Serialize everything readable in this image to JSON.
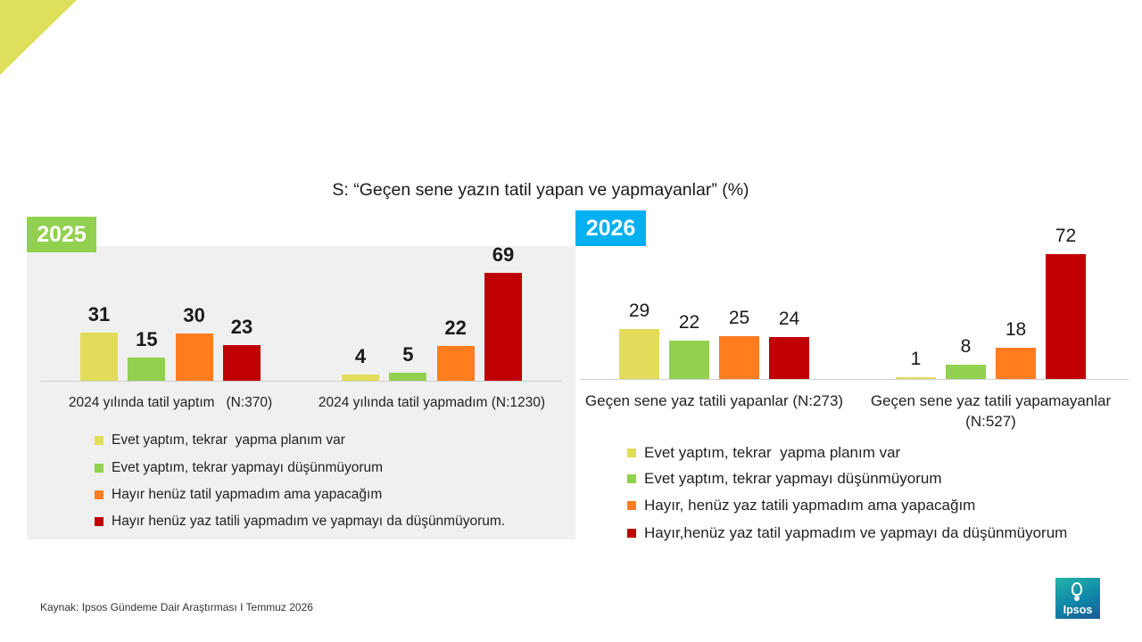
{
  "title": "S: “Geçen sene yazın tatil yapan ve yapmayanlar” (%)",
  "colors": {
    "accent": "#DEE05B",
    "panel": "#F0F0F0",
    "axis": "#CFCFCF"
  },
  "chart_data": [
    {
      "type": "bar",
      "title": "2025",
      "title_color": "#92D050",
      "categories": [
        "2024 yılında tatil yaptım   (N:370)",
        "2024 yılında tatil yapmadım (N:1230)"
      ],
      "series": [
        {
          "name": "Evet yaptım, tekrar  yapma planım var",
          "color": "#E3DC5A",
          "values": [
            31,
            4
          ]
        },
        {
          "name": "Evet yaptım, tekrar yapmayı düşünmüyorum",
          "color": "#92D050",
          "values": [
            15,
            5
          ]
        },
        {
          "name": "Hayır henüz tatil yapmadım ama yapacağım",
          "color": "#FF7C1F",
          "values": [
            30,
            22
          ]
        },
        {
          "name": "Hayır henüz yaz tatili yapmadım ve yapmayı da düşünmüyorum.",
          "color": "#C00000",
          "values": [
            23,
            69
          ]
        }
      ],
      "grid": false,
      "data_labels": true,
      "legend": "bottom"
    },
    {
      "type": "bar",
      "title": "2026",
      "title_color": "#00B0F0",
      "categories": [
        "Geçen sene yaz tatili yapanlar (N:273)",
        "Geçen sene yaz tatili yapamayanlar (N:527)"
      ],
      "series": [
        {
          "name": "Evet yaptım, tekrar  yapma planım var",
          "color": "#E3DC5A",
          "values": [
            29,
            1
          ]
        },
        {
          "name": "Evet yaptım, tekrar yapmayı düşünmüyorum",
          "color": "#92D050",
          "values": [
            22,
            8
          ]
        },
        {
          "name": "Hayır, henüz yaz tatili yapmadım ama yapacağım",
          "color": "#FF7C1F",
          "values": [
            25,
            18
          ]
        },
        {
          "name": "Hayır,henüz yaz tatil yapmadım ve yapmayı da düşünmüyorum",
          "color": "#C00000",
          "values": [
            24,
            72
          ]
        }
      ],
      "grid": false,
      "data_labels": true,
      "legend": "bottom"
    }
  ],
  "footer": {
    "source": "Kaynak: Ipsos Gündeme Dair Araştırması I Temmuz 2026"
  },
  "logo": {
    "text": "Ipsos",
    "icon": "ipsos-logo-icon"
  }
}
